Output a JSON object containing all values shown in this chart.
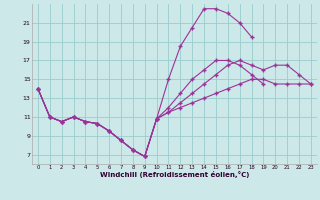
{
  "xlabel": "Windchill (Refroidissement éolien,°C)",
  "bg_color": "#cce8e8",
  "line_color": "#993399",
  "grid_color": "#99cccc",
  "xmin": -0.5,
  "xmax": 23.5,
  "ymin": 6.0,
  "ymax": 23.0,
  "yticks": [
    7,
    9,
    11,
    13,
    15,
    17,
    19,
    21
  ],
  "xticks": [
    0,
    1,
    2,
    3,
    4,
    5,
    6,
    7,
    8,
    9,
    10,
    11,
    12,
    13,
    14,
    15,
    16,
    17,
    18,
    19,
    20,
    21,
    22,
    23
  ],
  "curves": [
    {
      "x": [
        0,
        1,
        2,
        3,
        4,
        5,
        6,
        7,
        8,
        9,
        10,
        11,
        12,
        13,
        14,
        15,
        16,
        17,
        18
      ],
      "y": [
        14.0,
        11.0,
        10.5,
        11.0,
        10.5,
        10.3,
        9.5,
        8.5,
        7.5,
        6.8,
        10.8,
        15.0,
        18.5,
        20.5,
        22.5,
        22.5,
        22.0,
        21.0,
        19.5
      ]
    },
    {
      "x": [
        0,
        1,
        2,
        3,
        4,
        5,
        6,
        7,
        8,
        9,
        10,
        11,
        12,
        13,
        14,
        15,
        16,
        17,
        18,
        19
      ],
      "y": [
        14.0,
        11.0,
        10.5,
        11.0,
        10.5,
        10.3,
        9.5,
        8.5,
        7.5,
        6.8,
        10.8,
        12.0,
        13.5,
        15.0,
        16.0,
        17.0,
        17.0,
        16.5,
        15.5,
        14.5
      ]
    },
    {
      "x": [
        0,
        1,
        2,
        3,
        4,
        5,
        6,
        7,
        8,
        9,
        10,
        11,
        12,
        13,
        14,
        15,
        16,
        17,
        18,
        19,
        20,
        21,
        22,
        23
      ],
      "y": [
        14.0,
        11.0,
        10.5,
        11.0,
        10.5,
        10.3,
        9.5,
        8.5,
        7.5,
        6.8,
        10.8,
        11.5,
        12.5,
        13.5,
        14.5,
        15.5,
        16.5,
        17.0,
        16.5,
        16.0,
        16.5,
        16.5,
        15.5,
        14.5
      ]
    },
    {
      "x": [
        0,
        1,
        2,
        3,
        4,
        5,
        6,
        7,
        8,
        9,
        10,
        11,
        12,
        13,
        14,
        15,
        16,
        17,
        18,
        19,
        20,
        21,
        22,
        23
      ],
      "y": [
        14.0,
        11.0,
        10.5,
        11.0,
        10.5,
        10.3,
        9.5,
        8.5,
        7.5,
        6.8,
        10.8,
        11.5,
        12.0,
        12.5,
        13.0,
        13.5,
        14.0,
        14.5,
        15.0,
        15.0,
        14.5,
        14.5,
        14.5,
        14.5
      ]
    }
  ]
}
